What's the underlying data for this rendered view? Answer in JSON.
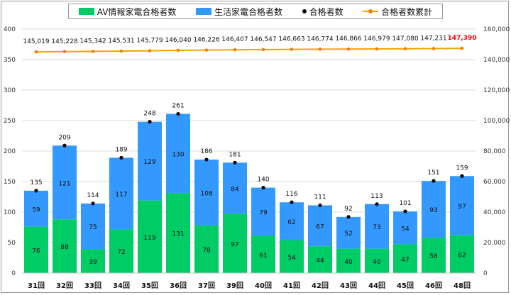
{
  "chart_data": {
    "type": "bar",
    "stacked": true,
    "categories": [
      "31回",
      "32回",
      "33回",
      "34回",
      "35回",
      "36回",
      "37回",
      "39回",
      "40回",
      "41回",
      "42回",
      "43回",
      "44回",
      "45回",
      "46回",
      "48回"
    ],
    "series": [
      {
        "name": "AV情報家電合格者数",
        "type": "bar",
        "color": "#00cc66",
        "values": [
          76,
          88,
          39,
          72,
          119,
          131,
          78,
          97,
          61,
          54,
          44,
          40,
          40,
          47,
          58,
          62
        ]
      },
      {
        "name": "生活家電合格者数",
        "type": "bar",
        "color": "#3399ff",
        "values": [
          59,
          121,
          75,
          117,
          129,
          130,
          108,
          84,
          79,
          62,
          67,
          52,
          73,
          54,
          93,
          97
        ]
      },
      {
        "name": "合格者数",
        "type": "scatter",
        "color": "#000000",
        "values": [
          135,
          209,
          114,
          189,
          248,
          261,
          186,
          181,
          140,
          116,
          111,
          92,
          113,
          101,
          151,
          159
        ]
      },
      {
        "name": "合格者数累計",
        "type": "line",
        "axis": "right",
        "color": "#f5a300",
        "values": [
          145019,
          145228,
          145342,
          145531,
          145779,
          146040,
          146226,
          146407,
          146547,
          146663,
          146774,
          146866,
          146979,
          147080,
          147231,
          147390
        ],
        "labels": [
          "145,019",
          "145,228",
          "145,342",
          "145,531",
          "145,779",
          "146,040",
          "146,226",
          "146,407",
          "146,547",
          "146,663",
          "146,774",
          "146,866",
          "146,979",
          "147,080",
          "147,231",
          "147,390"
        ],
        "highlight_last_color": "#ff0000"
      }
    ],
    "ylim": [
      0,
      400
    ],
    "yticks": [
      "0",
      "50",
      "100",
      "150",
      "200",
      "250",
      "300",
      "350",
      "400"
    ],
    "y2lim": [
      0,
      160000
    ],
    "y2ticks": [
      "0",
      "20,000",
      "40,000",
      "60,000",
      "80,000",
      "100,000",
      "120,000",
      "140,000",
      "160,000"
    ],
    "grid": true,
    "legend": "top"
  }
}
